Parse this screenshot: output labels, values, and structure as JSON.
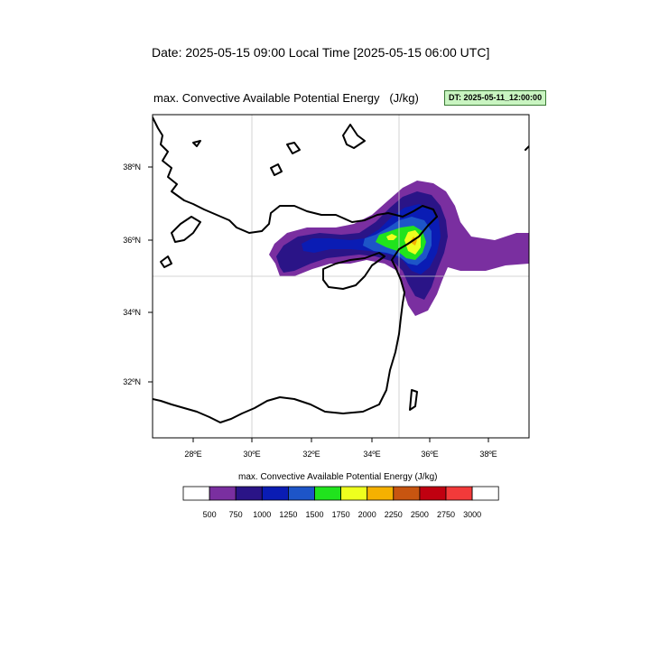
{
  "header": {
    "date_line": "Date: 2025-05-15  09:00 Local Time [2025-05-15  06:00 UTC]",
    "map_title": "max. Convective Available Potential Energy   (J/kg)",
    "dt_badge": "DT: 2025-05-11_12:00:00"
  },
  "map": {
    "lon_labels": [
      "28ºE",
      "30ºE",
      "32ºE",
      "34ºE",
      "36ºE",
      "38ºE"
    ],
    "lat_labels": [
      "38ºN",
      "36ºN",
      "34ºN",
      "32ºN"
    ],
    "colors": {
      "coast": "#000000",
      "grid": "#c8c8c8"
    }
  },
  "colorbar": {
    "title": "max. Convective Available Potential Energy  (J/kg)",
    "colors": [
      "#ffffff",
      "#7a2fa0",
      "#2a1487",
      "#0a1cb4",
      "#1d55c8",
      "#20e31d",
      "#eeff1e",
      "#f5b100",
      "#c85510",
      "#c00010",
      "#f23a3a",
      "#ffffff"
    ],
    "labels": [
      "500",
      "750",
      "1000",
      "1250",
      "1500",
      "1750",
      "2000",
      "2250",
      "2500",
      "2750",
      "3000"
    ]
  }
}
